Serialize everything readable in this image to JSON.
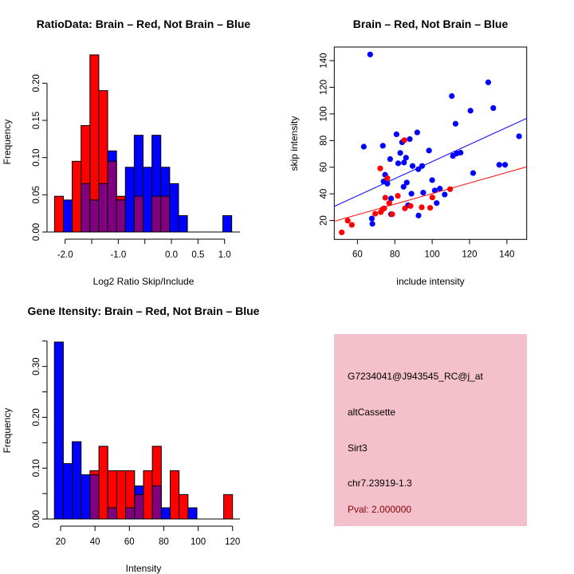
{
  "chart_data": [
    {
      "type": "bar",
      "title": "RatioData: Brain – Red, Not Brain – Blue",
      "xlabel": "Log2 Ratio Skip/Include",
      "ylabel": "Frequency",
      "bin_start": -2.2,
      "bin_width": 0.1667,
      "xticks": [
        -2.0,
        -1.5,
        -1.0,
        -0.5,
        0.0,
        0.5,
        1.0
      ],
      "xtick_labels": [
        "-2.0",
        "",
        "-1.0",
        "",
        "0.0",
        "0.5",
        "1.0"
      ],
      "yticks": [
        0,
        0.05,
        0.1,
        0.15,
        0.2
      ],
      "ytick_labels": [
        "0.00",
        "0.05",
        "0.10",
        "0.15",
        "0.20"
      ],
      "ylim": [
        0,
        0.24
      ],
      "series": [
        {
          "name": "Brain",
          "color": "#ff0000",
          "values": [
            0.048,
            0,
            0.095,
            0.143,
            0.238,
            0.19,
            0.095,
            0.048,
            0,
            0.048,
            0,
            0.048,
            0.048,
            0,
            0,
            0,
            0,
            0,
            0,
            0
          ]
        },
        {
          "name": "Not Brain",
          "color": "#0000ff",
          "values": [
            0,
            0.043,
            0,
            0.065,
            0.043,
            0.065,
            0.109,
            0.043,
            0.087,
            0.13,
            0.087,
            0.13,
            0.087,
            0.065,
            0.022,
            0,
            0,
            0,
            0,
            0.022
          ]
        }
      ],
      "overlap_color": "#800080"
    },
    {
      "type": "scatter",
      "title": "Brain – Red, Not Brain – Blue",
      "xlabel": "include intensity",
      "ylabel": "skip intensity",
      "xlim": [
        47.6,
        150.6
      ],
      "ylim": [
        5.8,
        150.2
      ],
      "xticks": [
        60,
        80,
        100,
        120,
        140
      ],
      "xtick_labels": [
        "60",
        "80",
        "100",
        "120",
        "140"
      ],
      "yticks": [
        20,
        40,
        60,
        80,
        100,
        120,
        140
      ],
      "ytick_labels": [
        "20",
        "40",
        "60",
        "80",
        "100",
        "120",
        "140"
      ],
      "series": [
        {
          "name": "Not Brain",
          "color": "#0000ff",
          "fit": [
            [
              47.6,
              30.6
            ],
            [
              150.6,
              96.7
            ]
          ],
          "points": [
            [
              66.8,
              144.6
            ],
            [
              63.4,
              75.4
            ],
            [
              73.6,
              76.1
            ],
            [
              80.9,
              84.7
            ],
            [
              92,
              86.1
            ],
            [
              88,
              81.1
            ],
            [
              83.9,
              78.7
            ],
            [
              82.9,
              70.7
            ],
            [
              77.5,
              66.1
            ],
            [
              86,
              67.1
            ],
            [
              81.8,
              62.9
            ],
            [
              84.9,
              63.5
            ],
            [
              89.5,
              60.9
            ],
            [
              94.6,
              60.9
            ],
            [
              92.6,
              58.5
            ],
            [
              98.3,
              72.5
            ],
            [
              74.8,
              54.3
            ],
            [
              74,
              49.3
            ],
            [
              76,
              47.7
            ],
            [
              86.4,
              48.5
            ],
            [
              84.7,
              45.3
            ],
            [
              100,
              50.3
            ],
            [
              88.9,
              40.1
            ],
            [
              95.2,
              40.9
            ],
            [
              101.4,
              42.5
            ],
            [
              104.1,
              43.9
            ],
            [
              106.7,
              39.5
            ],
            [
              78,
              36.5
            ],
            [
              87.1,
              31.5
            ],
            [
              102.4,
              33.1
            ],
            [
              78,
              24.7
            ],
            [
              92.7,
              23.7
            ],
            [
              67.7,
              21.5
            ],
            [
              68,
              17.5
            ],
            [
              110.5,
              113.4
            ],
            [
              120.5,
              102.4
            ],
            [
              130,
              123.7
            ],
            [
              132.7,
              104.4
            ],
            [
              112.5,
              92.6
            ],
            [
              111.1,
              68.5
            ],
            [
              113.1,
              70.3
            ],
            [
              115.2,
              70.9
            ],
            [
              121.9,
              55.6
            ],
            [
              135.9,
              61.8
            ],
            [
              139,
              61.8
            ],
            [
              146.5,
              83.2
            ]
          ]
        },
        {
          "name": "Brain",
          "color": "#ff0000",
          "fit": [
            [
              47.6,
              19.4
            ],
            [
              150.6,
              60.3
            ]
          ],
          "points": [
            [
              51.6,
              11.1
            ],
            [
              54.8,
              19.9
            ],
            [
              57,
              16.7
            ],
            [
              72.2,
              59.1
            ],
            [
              76,
              51.7
            ],
            [
              85.1,
              80.3
            ],
            [
              74.9,
              37.1
            ],
            [
              77,
              33.1
            ],
            [
              81.6,
              38.5
            ],
            [
              69.5,
              25.1
            ],
            [
              72.5,
              26.3
            ],
            [
              73.5,
              28.5
            ],
            [
              74.3,
              29.1
            ],
            [
              78.6,
              24.7
            ],
            [
              85.4,
              29.1
            ],
            [
              88.4,
              30.9
            ],
            [
              94.4,
              29.9
            ],
            [
              98.9,
              29.5
            ],
            [
              100.1,
              37.3
            ],
            [
              109.6,
              43.5
            ]
          ]
        }
      ]
    },
    {
      "type": "bar",
      "title": "Gene Itensity: Brain – Red, Not Brain – Blue",
      "xlabel": "Intensity",
      "ylabel": "Frequency",
      "bin_start": 16.4,
      "bin_width": 5.18,
      "xticks": [
        20,
        40,
        60,
        80,
        100,
        120
      ],
      "xtick_labels": [
        "20",
        "40",
        "60",
        "80",
        "100",
        "120"
      ],
      "yticks": [
        0,
        0.05,
        0.1,
        0.15,
        0.2,
        0.25,
        0.3,
        0.35
      ],
      "ytick_labels": [
        "0.00",
        "",
        "0.10",
        "",
        "0.20",
        "",
        "0.30",
        ""
      ],
      "ylim": [
        0,
        0.35
      ],
      "series": [
        {
          "name": "Brain",
          "color": "#ff0000",
          "values": [
            0,
            0,
            0,
            0,
            0.095,
            0.143,
            0.095,
            0.095,
            0.095,
            0.048,
            0.095,
            0.143,
            0,
            0.095,
            0.048,
            0,
            0,
            0,
            0,
            0.048
          ]
        },
        {
          "name": "Not Brain",
          "color": "#0000ff",
          "values": [
            0.348,
            0.109,
            0.152,
            0.087,
            0.087,
            0,
            0.022,
            0,
            0.022,
            0.065,
            0,
            0.065,
            0.022,
            0,
            0,
            0.022,
            0,
            0,
            0,
            0
          ]
        }
      ],
      "overlap_color": "#800080"
    }
  ],
  "info_box": {
    "background": "#f4c0cc",
    "probe": "G7234041@J943545_RC@j_at",
    "event_type": "altCassette",
    "gene": "Sirt3",
    "location": "chr7.23919-1.3",
    "pval": "Pval: 2.000000",
    "pval_color": "#8b0000"
  }
}
